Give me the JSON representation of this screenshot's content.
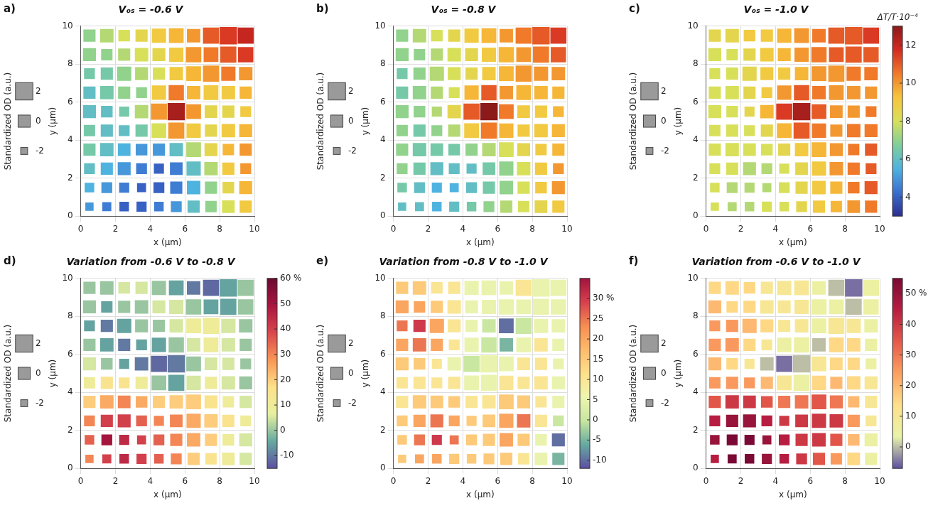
{
  "chart_data": [
    {
      "label": "a)",
      "type": "heatmap",
      "title": "Vₒₛ = -0.6 V",
      "x_label": "x (μm)",
      "y_label": "y (μm)",
      "xlim": [
        0,
        10
      ],
      "ylim": [
        0,
        10
      ],
      "xticks": [
        0,
        2,
        4,
        6,
        8,
        10
      ],
      "yticks": [
        0,
        2,
        4,
        6,
        8,
        10
      ],
      "grid": true,
      "x": [
        0.5,
        1.5,
        2.5,
        3.5,
        4.5,
        5.5,
        6.5,
        7.5,
        8.5,
        9.5
      ],
      "y": [
        0.5,
        1.5,
        2.5,
        3.5,
        4.5,
        5.5,
        6.5,
        7.5,
        8.5,
        9.5
      ],
      "cells": [
        [
          5,
          4.5,
          4,
          4,
          4.5,
          5,
          6,
          7,
          8,
          9
        ],
        [
          5.5,
          5,
          4.5,
          4,
          4,
          4.5,
          5.5,
          7,
          8.5,
          9.5
        ],
        [
          6,
          5.5,
          5,
          4.5,
          4,
          4.5,
          6,
          7.5,
          9,
          10
        ],
        [
          6.5,
          6,
          5.5,
          5,
          5,
          6,
          7.5,
          8.5,
          9.5,
          10
        ],
        [
          6.5,
          6,
          6,
          6.5,
          8,
          10,
          9,
          8.5,
          9,
          9.5
        ],
        [
          6,
          6,
          6.5,
          7.5,
          10,
          12.5,
          10,
          8.5,
          8.5,
          9
        ],
        [
          6,
          6.5,
          7,
          7,
          9,
          10.5,
          9.5,
          9,
          9,
          9.5
        ],
        [
          6.5,
          6.5,
          7,
          7.5,
          8,
          9,
          9.5,
          10,
          10.5,
          10
        ],
        [
          7,
          7,
          7.5,
          8,
          8.5,
          9,
          10,
          10.5,
          11,
          11.5
        ],
        [
          7,
          7.5,
          8,
          8.5,
          9,
          9.5,
          10,
          11,
          11.5,
          12
        ]
      ]
    },
    {
      "label": "b)",
      "type": "heatmap",
      "title": "Vₒₛ = -0.8 V",
      "x_label": "x (μm)",
      "y_label": "y (μm)",
      "xlim": [
        0,
        10
      ],
      "ylim": [
        0,
        10
      ],
      "xticks": [
        0,
        2,
        4,
        6,
        8,
        10
      ],
      "yticks": [
        0,
        2,
        4,
        6,
        8,
        10
      ],
      "grid": true,
      "x": [
        0.5,
        1.5,
        2.5,
        3.5,
        4.5,
        5.5,
        6.5,
        7.5,
        8.5,
        9.5
      ],
      "y": [
        0.5,
        1.5,
        2.5,
        3.5,
        4.5,
        5.5,
        6.5,
        7.5,
        8.5,
        9.5
      ],
      "cells": [
        [
          6,
          6,
          5.5,
          6,
          6.5,
          7,
          7.5,
          8,
          8.5,
          9
        ],
        [
          6.5,
          6,
          5.5,
          5.5,
          6,
          6.5,
          7,
          8,
          9,
          10
        ],
        [
          7,
          6.5,
          6,
          6,
          6,
          6.5,
          7,
          8,
          9,
          10
        ],
        [
          7,
          6.5,
          6.5,
          6.5,
          7,
          7.5,
          8,
          8.5,
          9,
          9.5
        ],
        [
          7,
          6.5,
          7,
          7.5,
          9,
          10.5,
          9.5,
          9,
          9,
          9.5
        ],
        [
          7,
          7,
          7.5,
          8.5,
          11,
          13,
          10.5,
          9,
          9,
          9.5
        ],
        [
          6.5,
          7,
          7.5,
          8,
          9.5,
          11,
          10,
          9.5,
          9.5,
          9.5
        ],
        [
          6.5,
          7,
          7.5,
          8,
          8.5,
          9,
          9.5,
          10,
          10,
          10
        ],
        [
          7,
          7,
          7.5,
          8,
          8.5,
          9,
          9.5,
          10,
          10.5,
          11
        ],
        [
          7,
          7.5,
          8,
          8.5,
          9,
          9.5,
          10,
          10.5,
          11,
          11.5
        ]
      ]
    },
    {
      "label": "c)",
      "type": "heatmap",
      "title": "Vₒₛ = -1.0 V",
      "x_label": "x (μm)",
      "y_label": "y (μm)",
      "xlim": [
        0,
        10
      ],
      "ylim": [
        0,
        10
      ],
      "xticks": [
        0,
        2,
        4,
        6,
        8,
        10
      ],
      "yticks": [
        0,
        2,
        4,
        6,
        8,
        10
      ],
      "grid": true,
      "x": [
        0.5,
        1.5,
        2.5,
        3.5,
        4.5,
        5.5,
        6.5,
        7.5,
        8.5,
        9.5
      ],
      "y": [
        0.5,
        1.5,
        2.5,
        3.5,
        4.5,
        5.5,
        6.5,
        7.5,
        8.5,
        9.5
      ],
      "cells": [
        [
          8,
          7.5,
          7.5,
          8,
          8,
          8.5,
          9,
          9.5,
          10,
          10.5
        ],
        [
          8,
          7.5,
          7.5,
          7.5,
          8,
          8.5,
          9,
          9.5,
          10.5,
          11
        ],
        [
          8,
          8,
          7.5,
          7.5,
          8,
          8.5,
          9,
          10,
          10.5,
          11
        ],
        [
          8,
          8,
          8,
          8,
          8.5,
          9,
          9.5,
          10,
          10.5,
          11
        ],
        [
          8,
          8,
          8,
          8.5,
          9.5,
          11,
          10.5,
          10,
          10.5,
          10.5
        ],
        [
          8,
          8,
          8.5,
          9.5,
          11.5,
          12.5,
          11,
          10,
          10,
          10.5
        ],
        [
          8,
          8,
          8.5,
          9,
          10,
          11,
          10.5,
          10,
          10,
          10
        ],
        [
          8,
          8,
          8.5,
          9,
          9,
          9.5,
          10,
          10,
          10.5,
          10.5
        ],
        [
          8,
          8,
          8.5,
          9,
          9.5,
          10,
          10.5,
          11,
          11,
          11
        ],
        [
          8.5,
          8.5,
          9,
          9,
          9.5,
          10,
          10.5,
          11,
          11,
          11.5
        ]
      ]
    },
    {
      "label": "d)",
      "type": "heatmap",
      "title": "Variation from -0.6 V to -0.8 V",
      "x_label": "x (μm)",
      "y_label": "y (μm)",
      "xlim": [
        0,
        10
      ],
      "ylim": [
        0,
        10
      ],
      "xticks": [
        0,
        2,
        4,
        6,
        8,
        10
      ],
      "yticks": [
        0,
        2,
        4,
        6,
        8,
        10
      ],
      "grid": true,
      "x": [
        0.5,
        1.5,
        2.5,
        3.5,
        4.5,
        5.5,
        6.5,
        7.5,
        8.5,
        9.5
      ],
      "y": [
        0.5,
        1.5,
        2.5,
        3.5,
        4.5,
        5.5,
        6.5,
        7.5,
        8.5,
        9.5
      ],
      "cells": [
        [
          30,
          40,
          45,
          40,
          35,
          30,
          20,
          15,
          10,
          5
        ],
        [
          35,
          50,
          45,
          40,
          35,
          30,
          25,
          20,
          10,
          5
        ],
        [
          30,
          40,
          40,
          35,
          30,
          30,
          25,
          20,
          15,
          10
        ],
        [
          20,
          25,
          30,
          25,
          20,
          20,
          20,
          15,
          10,
          5
        ],
        [
          10,
          15,
          15,
          10,
          0,
          -5,
          5,
          10,
          5,
          0
        ],
        [
          5,
          0,
          -5,
          -10,
          -12,
          -10,
          0,
          5,
          5,
          0
        ],
        [
          0,
          -5,
          -10,
          -5,
          -5,
          0,
          5,
          10,
          5,
          0
        ],
        [
          -5,
          -10,
          -5,
          0,
          0,
          5,
          10,
          10,
          5,
          0
        ],
        [
          0,
          -5,
          0,
          0,
          5,
          5,
          0,
          -5,
          -5,
          0
        ],
        [
          0,
          0,
          5,
          5,
          0,
          -5,
          -10,
          -12,
          -5,
          0
        ]
      ]
    },
    {
      "label": "e)",
      "type": "heatmap",
      "title": "Variation from -0.8 V to -1.0 V",
      "x_label": "x (μm)",
      "y_label": "y (μm)",
      "xlim": [
        0,
        10
      ],
      "ylim": [
        0,
        10
      ],
      "xticks": [
        0,
        2,
        4,
        6,
        8,
        10
      ],
      "yticks": [
        0,
        2,
        4,
        6,
        8,
        10
      ],
      "grid": true,
      "x": [
        0.5,
        1.5,
        2.5,
        3.5,
        4.5,
        5.5,
        6.5,
        7.5,
        8.5,
        9.5
      ],
      "y": [
        0.5,
        1.5,
        2.5,
        3.5,
        4.5,
        5.5,
        6.5,
        7.5,
        8.5,
        9.5
      ],
      "cells": [
        [
          15,
          20,
          20,
          15,
          15,
          15,
          15,
          10,
          5,
          -5
        ],
        [
          15,
          25,
          30,
          25,
          15,
          15,
          20,
          15,
          5,
          -10
        ],
        [
          15,
          20,
          25,
          20,
          15,
          15,
          20,
          25,
          10,
          0
        ],
        [
          10,
          15,
          15,
          15,
          10,
          10,
          15,
          15,
          10,
          5
        ],
        [
          10,
          10,
          10,
          10,
          5,
          5,
          10,
          10,
          10,
          5
        ],
        [
          15,
          15,
          10,
          5,
          0,
          5,
          5,
          10,
          10,
          5
        ],
        [
          20,
          25,
          20,
          10,
          5,
          0,
          -5,
          5,
          10,
          5
        ],
        [
          25,
          30,
          20,
          10,
          5,
          0,
          -10,
          0,
          5,
          5
        ],
        [
          20,
          20,
          15,
          10,
          5,
          5,
          5,
          5,
          5,
          5
        ],
        [
          15,
          15,
          10,
          10,
          5,
          5,
          5,
          10,
          5,
          5
        ]
      ]
    },
    {
      "label": "f)",
      "type": "heatmap",
      "title": "Variation from -0.6 V to -1.0 V",
      "x_label": "x (μm)",
      "y_label": "y (μm)",
      "xlim": [
        0,
        10
      ],
      "ylim": [
        0,
        10
      ],
      "xticks": [
        0,
        2,
        4,
        6,
        8,
        10
      ],
      "yticks": [
        0,
        2,
        4,
        6,
        8,
        10
      ],
      "grid": true,
      "x": [
        0.5,
        1.5,
        2.5,
        3.5,
        4.5,
        5.5,
        6.5,
        7.5,
        8.5,
        9.5
      ],
      "y": [
        0.5,
        1.5,
        2.5,
        3.5,
        4.5,
        5.5,
        6.5,
        7.5,
        8.5,
        9.5
      ],
      "cells": [
        [
          45,
          55,
          55,
          50,
          45,
          40,
          35,
          25,
          15,
          5
        ],
        [
          50,
          55,
          55,
          50,
          45,
          40,
          40,
          35,
          20,
          5
        ],
        [
          45,
          50,
          50,
          45,
          40,
          40,
          40,
          40,
          25,
          10
        ],
        [
          35,
          40,
          40,
          35,
          30,
          30,
          35,
          30,
          20,
          10
        ],
        [
          25,
          25,
          25,
          20,
          10,
          5,
          15,
          20,
          15,
          10
        ],
        [
          20,
          15,
          10,
          0,
          -5,
          0,
          10,
          15,
          15,
          5
        ],
        [
          25,
          25,
          15,
          10,
          5,
          5,
          0,
          15,
          15,
          5
        ],
        [
          25,
          25,
          20,
          15,
          10,
          10,
          5,
          10,
          10,
          5
        ],
        [
          20,
          15,
          15,
          10,
          10,
          10,
          5,
          5,
          0,
          5
        ],
        [
          15,
          15,
          15,
          10,
          10,
          10,
          5,
          0,
          -5,
          5
        ]
      ]
    }
  ],
  "surface": {
    "label": "Standardized OD (a.u.)",
    "zticks": [
      -2,
      0,
      2
    ],
    "od": [
      [
        -1.5,
        -1.2,
        -1,
        -0.8,
        -1,
        -0.5,
        0,
        -0.3,
        0.2,
        0
      ],
      [
        -1,
        -0.5,
        -0.8,
        -1.2,
        -0.5,
        0,
        0.5,
        0,
        -0.2,
        0.3
      ],
      [
        -0.5,
        0,
        0.3,
        -0.5,
        -0.8,
        0.2,
        0.8,
        0.5,
        0,
        -0.5
      ],
      [
        0,
        0.5,
        0.2,
        -0.2,
        0,
        0.5,
        1,
        0.3,
        -0.3,
        0
      ],
      [
        -0.3,
        0,
        -0.5,
        0,
        1,
        1.5,
        0.8,
        0,
        0.5,
        0.3
      ],
      [
        0.3,
        -0.2,
        -0.8,
        0.5,
        1.5,
        2,
        1,
        0.2,
        0,
        -0.5
      ],
      [
        0,
        0.5,
        0,
        -0.5,
        0.8,
        1.2,
        0.5,
        1,
        0.5,
        0
      ],
      [
        -0.5,
        0,
        0.8,
        0.3,
        0,
        0.5,
        1,
        1.5,
        0.8,
        0.5
      ],
      [
        0.3,
        -0.3,
        0,
        0.5,
        0.3,
        0.8,
        1.2,
        1,
        1.5,
        1.2
      ],
      [
        0,
        0.5,
        -0.2,
        0,
        0.8,
        1,
        0.5,
        1.5,
        2,
        1.5
      ]
    ]
  },
  "colorbars": [
    {
      "panels": [
        "a)",
        "b)",
        "c)"
      ],
      "label": "ΔT/T·10⁻⁴",
      "range": [
        3,
        13
      ],
      "ticks": [
        4,
        6,
        8,
        10,
        12
      ],
      "colors": [
        "#2c2d8f",
        "#3a6fd0",
        "#4fb3e0",
        "#7fcf9a",
        "#d8e05a",
        "#f7c53c",
        "#f07a2a",
        "#d42a22",
        "#8b1a1a"
      ]
    },
    {
      "panels": [
        "d)"
      ],
      "range": [
        -15,
        60
      ],
      "ticks": [
        -10,
        0,
        10,
        20,
        30,
        40,
        50,
        {
          "value": 60,
          "label": "60 %"
        }
      ],
      "colors": [
        "#5e4fa2",
        "#66a9a0",
        "#e6f1a0",
        "#fee08b",
        "#f99655",
        "#d9474e",
        "#a8163f",
        "#6b0a33"
      ]
    },
    {
      "panels": [
        "e)"
      ],
      "range": [
        -12,
        35
      ],
      "ticks": [
        -10,
        -5,
        0,
        5,
        10,
        15,
        20,
        25,
        {
          "value": 30,
          "label": "30 %"
        }
      ],
      "colors": [
        "#5e4fa2",
        "#66a9a0",
        "#c7e6a0",
        "#eef5b0",
        "#fee08b",
        "#fdbb6c",
        "#f68d52",
        "#d6404e",
        "#a0143f"
      ]
    },
    {
      "panels": [
        "f)"
      ],
      "range": [
        -7,
        55
      ],
      "ticks": [
        0,
        10,
        20,
        30,
        40,
        {
          "value": 50,
          "label": "50 %"
        }
      ],
      "colors": [
        "#5e4fa2",
        "#e9f3a8",
        "#fee08b",
        "#fca060",
        "#e55a4a",
        "#b81e40",
        "#7a0a35"
      ]
    }
  ]
}
